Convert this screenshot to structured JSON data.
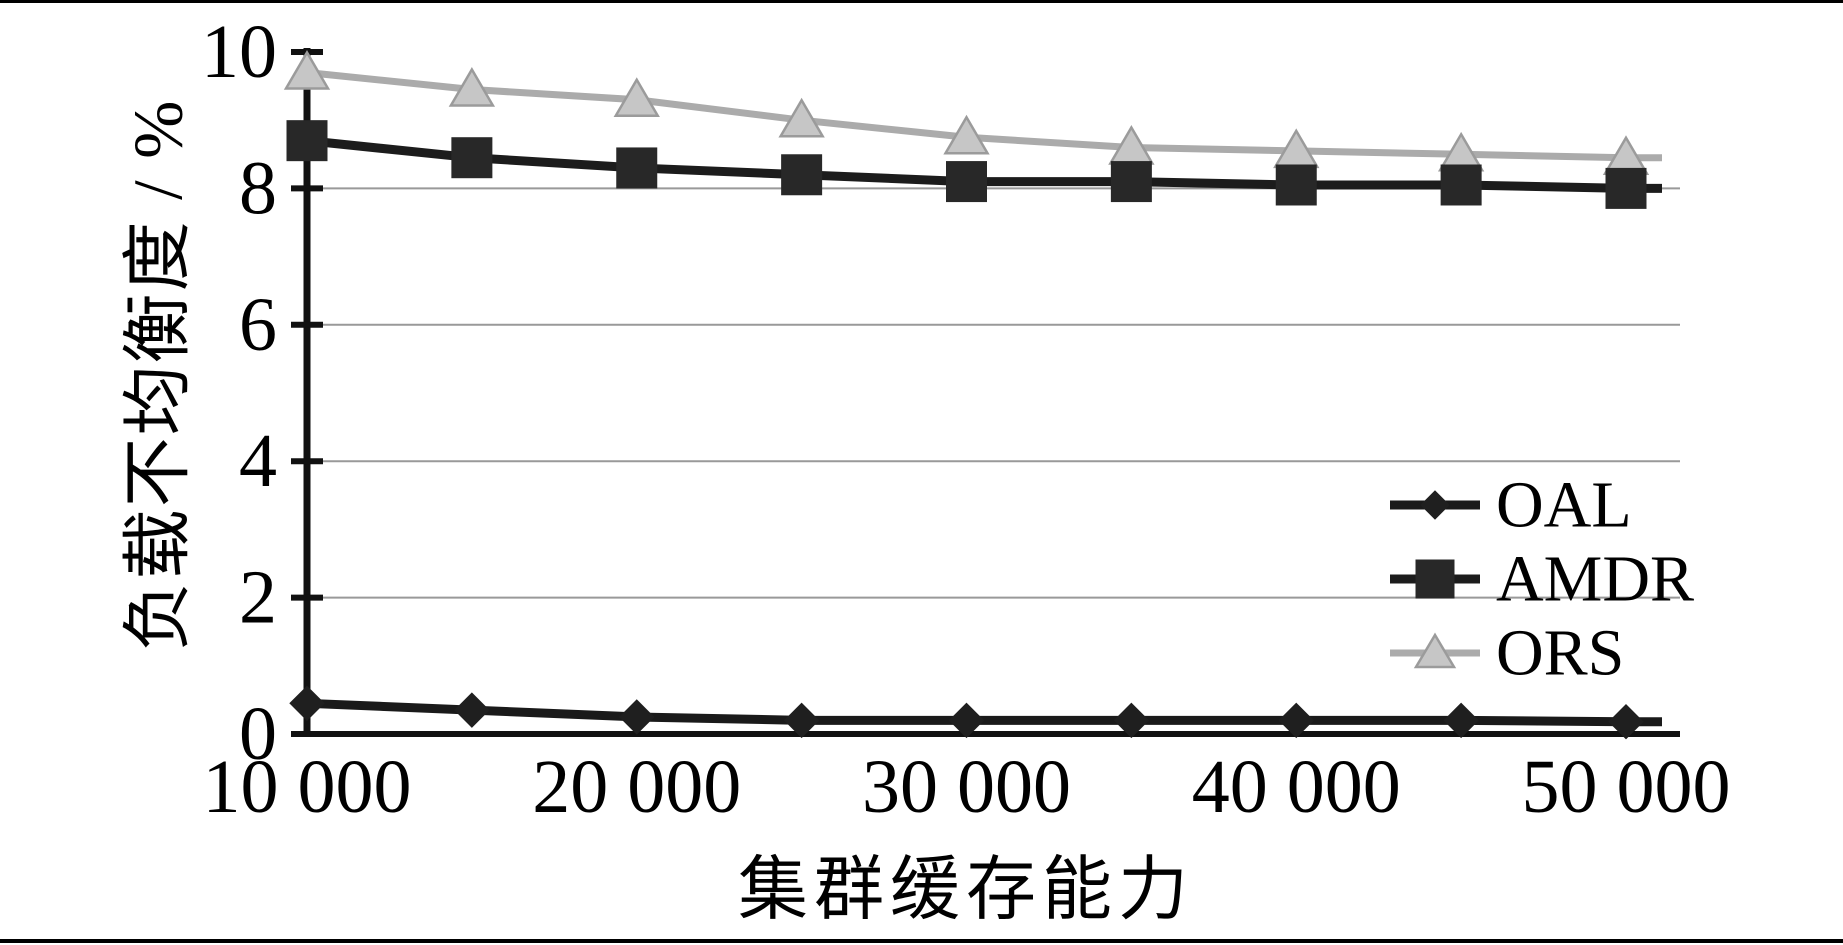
{
  "page": {
    "background": "#ffffff",
    "frame_color": "#000000"
  },
  "chart_data": {
    "type": "line",
    "title": "",
    "xlabel": "集群缓存能力",
    "ylabel": "负载不均衡度 / %",
    "x": [
      10000,
      15000,
      20000,
      25000,
      30000,
      35000,
      40000,
      45000,
      50000
    ],
    "xlim": [
      10000,
      50000
    ],
    "ylim": [
      0,
      10
    ],
    "x_tick_values": [
      10000,
      20000,
      30000,
      40000,
      50000
    ],
    "x_tick_labels": [
      "10 000",
      "20 000",
      "30 000",
      "40 000",
      "50 000"
    ],
    "y_tick_values": [
      0,
      2,
      4,
      6,
      8,
      10
    ],
    "y_tick_labels": [
      "0",
      "2",
      "4",
      "6",
      "8",
      "10"
    ],
    "grid": "horizontal",
    "gridline_values": [
      2,
      4,
      6,
      8
    ],
    "legend_position": "right-middle",
    "series": [
      {
        "name": "OAL",
        "marker": "diamond",
        "line_color": "#1a1a1a",
        "marker_fill": "#1f1f1f",
        "marker_edge": "#1f1f1f",
        "values": [
          0.45,
          0.35,
          0.25,
          0.2,
          0.2,
          0.2,
          0.2,
          0.2,
          0.18
        ]
      },
      {
        "name": "AMDR",
        "marker": "square",
        "line_color": "#1c1c1c",
        "marker_fill": "#282828",
        "marker_edge": "#282828",
        "values": [
          8.7,
          8.45,
          8.3,
          8.2,
          8.1,
          8.1,
          8.05,
          8.05,
          8.0
        ]
      },
      {
        "name": "ORS",
        "marker": "triangle",
        "line_color": "#ababab",
        "marker_fill": "#c6c6c6",
        "marker_edge": "#9b9b9b",
        "values": [
          9.7,
          9.45,
          9.3,
          9.0,
          8.75,
          8.6,
          8.55,
          8.5,
          8.45
        ]
      }
    ],
    "colors": {
      "gridline": "#999999",
      "axis": "#111111",
      "text": "#000000"
    }
  }
}
